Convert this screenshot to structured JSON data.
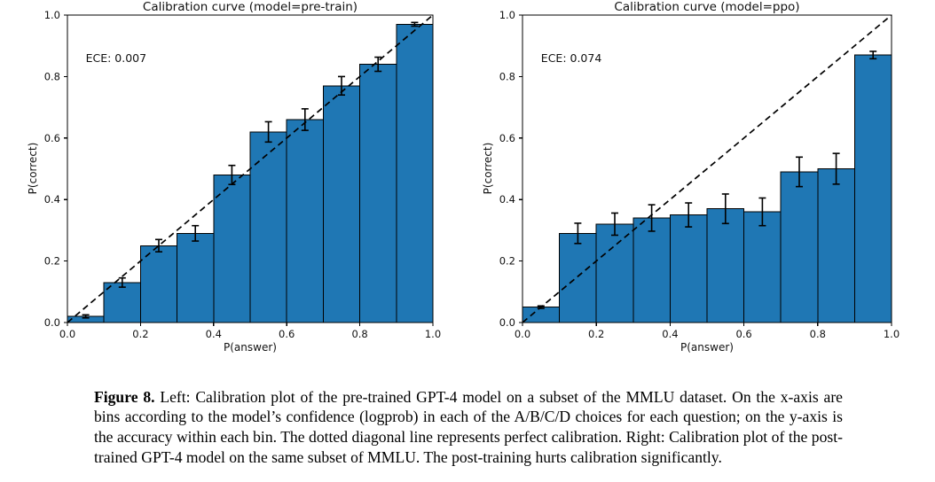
{
  "caption": {
    "label": "Figure 8.",
    "text": "Left: Calibration plot of the pre-trained GPT-4 model on a subset of the MMLU dataset. On the x-axis are bins according to the model’s confidence (logprob) in each of the A/B/C/D choices for each question; on the y-axis is the accuracy within each bin. The dotted diagonal line represents perfect calibration. Right: Calibration plot of the post-trained GPT-4 model on the same subset of MMLU. The post-training hurts calibration significantly."
  },
  "chart_data": [
    {
      "type": "bar",
      "title": "Calibration curve (model=pre-train)",
      "annotation": "ECE: 0.007",
      "xlabel": "P(answer)",
      "ylabel": "P(correct)",
      "xlim": [
        0.0,
        1.0
      ],
      "ylim": [
        0.0,
        1.0
      ],
      "xticks": [
        "0.0",
        "0.2",
        "0.4",
        "0.6",
        "0.8",
        "1.0"
      ],
      "yticks": [
        "0.0",
        "0.2",
        "0.4",
        "0.6",
        "0.8",
        "1.0"
      ],
      "bin_edges": [
        0.0,
        0.1,
        0.2,
        0.3,
        0.4,
        0.5,
        0.6,
        0.7,
        0.8,
        0.9,
        1.0
      ],
      "values": [
        0.02,
        0.13,
        0.25,
        0.29,
        0.48,
        0.62,
        0.66,
        0.77,
        0.84,
        0.97
      ],
      "errors": [
        0.005,
        0.015,
        0.02,
        0.025,
        0.031,
        0.033,
        0.035,
        0.03,
        0.023,
        0.006
      ],
      "bar_color": "#1f77b4",
      "edge_color": "#000000",
      "diagonal": "dashed y=x perfect-calibration line",
      "grid": false,
      "legend": "none"
    },
    {
      "type": "bar",
      "title": "Calibration curve (model=ppo)",
      "annotation": "ECE: 0.074",
      "xlabel": "P(answer)",
      "ylabel": "P(correct)",
      "xlim": [
        0.0,
        1.0
      ],
      "ylim": [
        0.0,
        1.0
      ],
      "xticks": [
        "0.0",
        "0.2",
        "0.4",
        "0.6",
        "0.8",
        "1.0"
      ],
      "yticks": [
        "0.0",
        "0.2",
        "0.4",
        "0.6",
        "0.8",
        "1.0"
      ],
      "bin_edges": [
        0.0,
        0.1,
        0.2,
        0.3,
        0.4,
        0.5,
        0.6,
        0.7,
        0.8,
        0.9,
        1.0
      ],
      "values": [
        0.05,
        0.29,
        0.32,
        0.34,
        0.35,
        0.37,
        0.36,
        0.49,
        0.5,
        0.87
      ],
      "errors": [
        0.004,
        0.033,
        0.036,
        0.043,
        0.039,
        0.048,
        0.045,
        0.048,
        0.05,
        0.012
      ],
      "bar_color": "#1f77b4",
      "edge_color": "#000000",
      "diagonal": "dashed y=x perfect-calibration line",
      "grid": false,
      "legend": "none"
    }
  ]
}
